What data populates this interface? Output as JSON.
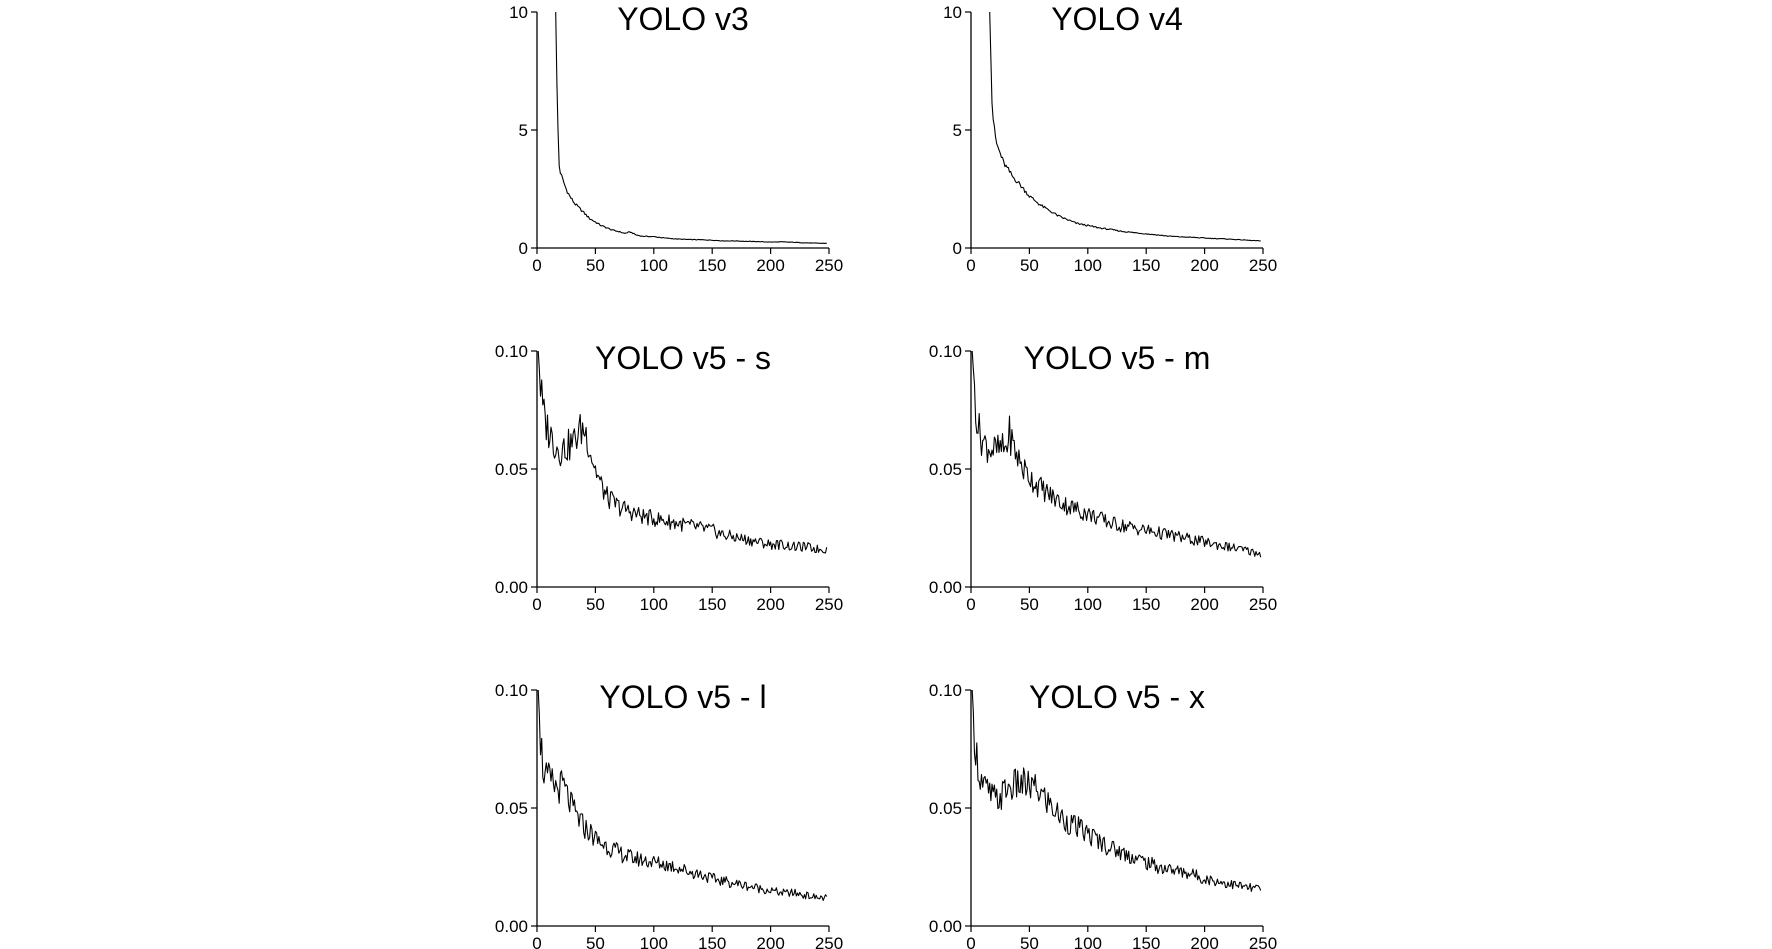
{
  "chart_data": [
    {
      "type": "line",
      "title": "YOLO v3",
      "xlim": [
        0,
        250
      ],
      "ylim": [
        0,
        10
      ],
      "xticks": [
        "0",
        "50",
        "100",
        "150",
        "200",
        "250"
      ],
      "yticks": [
        "0",
        "5",
        "10"
      ],
      "series": [
        {
          "x": [
            16,
            17,
            18,
            19,
            20,
            22,
            25,
            28,
            32,
            36,
            40,
            45,
            50,
            55,
            60,
            65,
            70,
            75,
            80,
            85,
            90,
            100,
            110,
            120,
            130,
            140,
            150,
            160,
            170,
            180,
            190,
            200,
            210,
            220,
            230,
            240,
            248
          ],
          "y": [
            10.0,
            7.0,
            5.0,
            3.5,
            3.2,
            2.9,
            2.5,
            2.2,
            1.9,
            1.7,
            1.5,
            1.25,
            1.1,
            0.95,
            0.85,
            0.75,
            0.7,
            0.62,
            0.68,
            0.55,
            0.5,
            0.48,
            0.42,
            0.38,
            0.36,
            0.35,
            0.33,
            0.3,
            0.3,
            0.28,
            0.27,
            0.25,
            0.26,
            0.24,
            0.22,
            0.2,
            0.2
          ]
        }
      ]
    },
    {
      "type": "line",
      "title": "YOLO v4",
      "xlim": [
        0,
        250
      ],
      "ylim": [
        0,
        10
      ],
      "xticks": [
        "0",
        "50",
        "100",
        "150",
        "200",
        "250"
      ],
      "yticks": [
        "0",
        "5",
        "10"
      ],
      "series": [
        {
          "x": [
            16,
            17,
            18,
            19,
            20,
            22,
            25,
            28,
            32,
            36,
            40,
            45,
            50,
            55,
            60,
            65,
            70,
            75,
            80,
            85,
            90,
            100,
            110,
            120,
            130,
            140,
            150,
            160,
            170,
            180,
            190,
            200,
            210,
            220,
            230,
            240,
            248
          ],
          "y": [
            10.0,
            8.0,
            6.2,
            5.5,
            5.0,
            4.4,
            4.0,
            3.6,
            3.3,
            3.0,
            2.8,
            2.5,
            2.2,
            2.0,
            1.8,
            1.65,
            1.5,
            1.35,
            1.25,
            1.15,
            1.05,
            0.95,
            0.85,
            0.78,
            0.7,
            0.65,
            0.6,
            0.55,
            0.5,
            0.47,
            0.45,
            0.42,
            0.4,
            0.38,
            0.35,
            0.32,
            0.3
          ]
        }
      ]
    },
    {
      "type": "line",
      "title": "YOLO v5 - s",
      "xlim": [
        0,
        250
      ],
      "ylim": [
        0,
        0.1
      ],
      "xticks": [
        "0",
        "50",
        "100",
        "150",
        "200",
        "250"
      ],
      "yticks": [
        "0.00",
        "0.05",
        "0.10"
      ],
      "series": [
        {
          "x": [
            1,
            3,
            5,
            7,
            10,
            13,
            16,
            20,
            24,
            28,
            32,
            36,
            40,
            43,
            46,
            50,
            55,
            60,
            65,
            70,
            80,
            90,
            100,
            110,
            120,
            130,
            140,
            150,
            160,
            170,
            180,
            190,
            200,
            210,
            220,
            230,
            240,
            248
          ],
          "y": [
            0.1,
            0.085,
            0.075,
            0.07,
            0.066,
            0.063,
            0.06,
            0.058,
            0.059,
            0.06,
            0.062,
            0.066,
            0.067,
            0.064,
            0.057,
            0.05,
            0.043,
            0.038,
            0.036,
            0.034,
            0.032,
            0.03,
            0.029,
            0.028,
            0.027,
            0.026,
            0.025,
            0.024,
            0.022,
            0.021,
            0.02,
            0.019,
            0.018,
            0.018,
            0.017,
            0.017,
            0.016,
            0.016
          ]
        }
      ]
    },
    {
      "type": "line",
      "title": "YOLO v5 - m",
      "xlim": [
        0,
        250
      ],
      "ylim": [
        0,
        0.1
      ],
      "xticks": [
        "0",
        "50",
        "100",
        "150",
        "200",
        "250"
      ],
      "yticks": [
        "0.00",
        "0.05",
        "0.10"
      ],
      "series": [
        {
          "x": [
            1,
            3,
            5,
            7,
            10,
            13,
            16,
            20,
            25,
            30,
            33,
            36,
            40,
            45,
            50,
            55,
            60,
            65,
            70,
            80,
            90,
            100,
            110,
            120,
            130,
            140,
            150,
            160,
            170,
            180,
            190,
            200,
            210,
            220,
            230,
            240,
            248
          ],
          "y": [
            0.1,
            0.085,
            0.072,
            0.066,
            0.062,
            0.06,
            0.059,
            0.058,
            0.058,
            0.059,
            0.065,
            0.06,
            0.055,
            0.05,
            0.047,
            0.044,
            0.042,
            0.04,
            0.038,
            0.035,
            0.033,
            0.031,
            0.029,
            0.027,
            0.026,
            0.025,
            0.024,
            0.023,
            0.022,
            0.021,
            0.02,
            0.019,
            0.018,
            0.017,
            0.016,
            0.015,
            0.014
          ]
        }
      ]
    },
    {
      "type": "line",
      "title": "YOLO v5 - l",
      "xlim": [
        0,
        250
      ],
      "ylim": [
        0,
        0.1
      ],
      "xticks": [
        "0",
        "50",
        "100",
        "150",
        "200",
        "250"
      ],
      "yticks": [
        "0.00",
        "0.05",
        "0.10"
      ],
      "series": [
        {
          "x": [
            1,
            3,
            5,
            7,
            10,
            14,
            18,
            22,
            26,
            30,
            35,
            40,
            45,
            50,
            55,
            60,
            70,
            80,
            90,
            100,
            110,
            120,
            130,
            140,
            150,
            160,
            170,
            180,
            190,
            200,
            210,
            220,
            230,
            240,
            248
          ],
          "y": [
            0.1,
            0.08,
            0.068,
            0.063,
            0.062,
            0.06,
            0.058,
            0.06,
            0.055,
            0.05,
            0.046,
            0.042,
            0.04,
            0.037,
            0.035,
            0.034,
            0.031,
            0.029,
            0.028,
            0.027,
            0.026,
            0.025,
            0.023,
            0.022,
            0.02,
            0.019,
            0.018,
            0.017,
            0.016,
            0.015,
            0.014,
            0.014,
            0.013,
            0.012,
            0.012
          ]
        }
      ]
    },
    {
      "type": "line",
      "title": "YOLO v5 - x",
      "xlim": [
        0,
        250
      ],
      "ylim": [
        0,
        0.1
      ],
      "xticks": [
        "0",
        "50",
        "100",
        "150",
        "200",
        "250"
      ],
      "yticks": [
        "0.00",
        "0.05",
        "0.10"
      ],
      "series": [
        {
          "x": [
            1,
            3,
            5,
            7,
            10,
            14,
            18,
            22,
            26,
            30,
            35,
            40,
            45,
            50,
            55,
            60,
            65,
            70,
            75,
            80,
            90,
            100,
            110,
            120,
            130,
            140,
            150,
            160,
            170,
            180,
            190,
            200,
            210,
            220,
            230,
            240,
            248
          ],
          "y": [
            0.1,
            0.082,
            0.072,
            0.065,
            0.06,
            0.057,
            0.055,
            0.053,
            0.055,
            0.058,
            0.059,
            0.06,
            0.06,
            0.059,
            0.058,
            0.056,
            0.053,
            0.05,
            0.047,
            0.045,
            0.042,
            0.039,
            0.036,
            0.033,
            0.031,
            0.029,
            0.027,
            0.025,
            0.024,
            0.023,
            0.022,
            0.02,
            0.019,
            0.018,
            0.017,
            0.016,
            0.016
          ]
        }
      ]
    }
  ]
}
